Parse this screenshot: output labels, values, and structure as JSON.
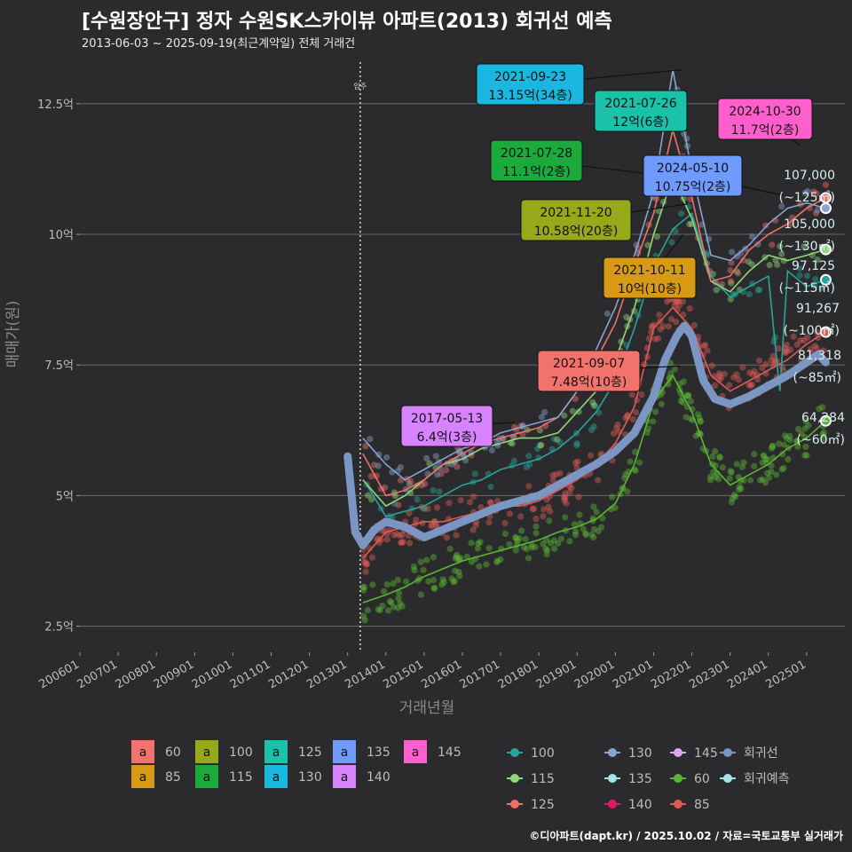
{
  "title": "[수원장안구] 정자 수원SK스카이뷰 아파트(2013) 회귀선 예측",
  "subtitle": "2013-06-03 ~ 2025-09-19(최근계약일) 전체 거래건",
  "caption": "©디아파트(dapt.kr) / 2025.10.02 / 자료=국토교통부 실거래가",
  "chart_data": {
    "type": "scatter",
    "xlabel": "거래년월",
    "ylabel": "매매가(원)",
    "xlim": [
      2006.0,
      2026.0
    ],
    "ylim": [
      2.0,
      13.5
    ],
    "y_ticks": [
      {
        "v": 2.5,
        "label": "2.5억"
      },
      {
        "v": 5,
        "label": "5억"
      },
      {
        "v": 7.5,
        "label": "7.5억"
      },
      {
        "v": 10,
        "label": "10억"
      },
      {
        "v": 12.5,
        "label": "12.5억"
      }
    ],
    "x_ticks": [
      {
        "v": 2006.0,
        "label": "200601"
      },
      {
        "v": 2007.0,
        "label": "200701"
      },
      {
        "v": 2008.0,
        "label": "200801"
      },
      {
        "v": 2009.0,
        "label": "200901"
      },
      {
        "v": 2010.0,
        "label": "201001"
      },
      {
        "v": 2011.0,
        "label": "201101"
      },
      {
        "v": 2012.0,
        "label": "201201"
      },
      {
        "v": 2013.0,
        "label": "201301"
      },
      {
        "v": 2014.0,
        "label": "201401"
      },
      {
        "v": 2015.0,
        "label": "201501"
      },
      {
        "v": 2016.0,
        "label": "201601"
      },
      {
        "v": 2017.0,
        "label": "201701"
      },
      {
        "v": 2018.0,
        "label": "201801"
      },
      {
        "v": 2019.0,
        "label": "201901"
      },
      {
        "v": 2020.0,
        "label": "202001"
      },
      {
        "v": 2021.0,
        "label": "202101"
      },
      {
        "v": 2022.0,
        "label": "202201"
      },
      {
        "v": 2023.0,
        "label": "202301"
      },
      {
        "v": 2024.0,
        "label": "202401"
      },
      {
        "v": 2025.0,
        "label": "202501"
      }
    ],
    "move_in": {
      "x": 2013.33,
      "label": "입주"
    },
    "regression": {
      "name": "회귀선",
      "color": "#7b96c4",
      "x": [
        2013.0,
        2013.2,
        2013.4,
        2013.7,
        2014.0,
        2014.5,
        2015.0,
        2015.5,
        2016.0,
        2016.5,
        2017.0,
        2017.5,
        2018.0,
        2018.5,
        2019.0,
        2019.5,
        2020.0,
        2020.5,
        2021.0,
        2021.3,
        2021.6,
        2021.8,
        2022.0,
        2022.3,
        2022.6,
        2023.0,
        2023.5,
        2024.0,
        2024.5,
        2025.0,
        2025.3,
        2025.5
      ],
      "y": [
        5.75,
        4.3,
        4.05,
        4.35,
        4.5,
        4.4,
        4.2,
        4.35,
        4.5,
        4.65,
        4.8,
        4.9,
        5.0,
        5.2,
        5.4,
        5.6,
        5.85,
        6.2,
        6.9,
        7.6,
        8.05,
        8.25,
        8.05,
        7.2,
        6.85,
        6.75,
        6.9,
        7.1,
        7.3,
        7.55,
        7.7,
        7.55
      ]
    },
    "series": [
      {
        "name": "60",
        "color": "#5bb534",
        "x": [
          2013.4,
          2014.0,
          2014.5,
          2015.0,
          2015.5,
          2016.0,
          2016.5,
          2017.0,
          2017.5,
          2018.0,
          2018.5,
          2019.0,
          2019.5,
          2020.0,
          2020.5,
          2021.0,
          2021.5,
          2022.0,
          2022.5,
          2023.0,
          2023.5,
          2024.0,
          2024.5,
          2025.0,
          2025.5
        ],
        "y": [
          2.95,
          3.1,
          3.25,
          3.45,
          3.6,
          3.75,
          3.85,
          3.95,
          4.05,
          4.15,
          4.3,
          4.4,
          4.55,
          4.85,
          5.6,
          6.8,
          7.3,
          6.6,
          5.6,
          5.2,
          5.4,
          5.6,
          5.9,
          6.1,
          6.43
        ]
      },
      {
        "name": "85",
        "color": "#e05a56",
        "x": [
          2013.4,
          2014.0,
          2014.5,
          2015.0,
          2015.5,
          2016.0,
          2016.5,
          2017.0,
          2017.5,
          2018.0,
          2018.5,
          2019.0,
          2019.5,
          2020.0,
          2020.5,
          2021.0,
          2021.5,
          2022.0,
          2022.5,
          2023.0,
          2023.5,
          2024.0,
          2024.5,
          2025.0,
          2025.5
        ],
        "y": [
          3.8,
          4.3,
          4.4,
          4.5,
          4.5,
          4.6,
          4.7,
          4.8,
          4.8,
          4.9,
          5.1,
          5.3,
          5.6,
          6.0,
          6.7,
          8.2,
          8.6,
          8.2,
          7.3,
          7.0,
          7.2,
          7.4,
          7.6,
          7.9,
          8.13
        ]
      },
      {
        "name": "100",
        "color": "#29a39a",
        "x": [
          2013.5,
          2014.0,
          2014.5,
          2015.0,
          2015.5,
          2016.0,
          2016.5,
          2017.0,
          2017.5,
          2018.0,
          2018.5,
          2019.0,
          2019.5,
          2020.0,
          2020.5,
          2021.0,
          2021.5,
          2022.0,
          2022.5,
          2023.0,
          2023.5,
          2024.0,
          2024.3,
          2024.5,
          2025.0,
          2025.5
        ],
        "y": [
          5.2,
          4.6,
          4.7,
          4.8,
          5.0,
          5.2,
          5.3,
          5.5,
          5.6,
          5.7,
          5.9,
          6.2,
          6.6,
          7.2,
          8.2,
          9.4,
          10.1,
          10.4,
          9.2,
          8.8,
          9.0,
          9.2,
          7.0,
          9.3,
          9.0,
          9.13
        ]
      },
      {
        "name": "115",
        "color": "#90d67a",
        "x": [
          2013.4,
          2014.0,
          2014.5,
          2015.0,
          2015.5,
          2016.0,
          2016.5,
          2017.0,
          2017.5,
          2018.0,
          2018.5,
          2019.0,
          2019.5,
          2020.0,
          2020.5,
          2021.0,
          2021.5,
          2022.0,
          2022.5,
          2023.0,
          2023.5,
          2024.0,
          2024.5,
          2025.0,
          2025.5
        ],
        "y": [
          5.3,
          4.8,
          5.0,
          5.3,
          5.6,
          5.7,
          5.9,
          6.0,
          6.1,
          6.1,
          6.2,
          6.6,
          7.0,
          7.6,
          8.6,
          10.0,
          11.1,
          10.3,
          9.1,
          8.9,
          9.3,
          9.6,
          9.5,
          9.6,
          9.71
        ]
      },
      {
        "name": "125",
        "color": "#f06f6b",
        "x": [
          2013.4,
          2014.0,
          2014.5,
          2015.0,
          2015.5,
          2016.0,
          2016.5,
          2017.0,
          2017.5,
          2018.0,
          2018.5,
          2019.0,
          2019.5,
          2020.0,
          2020.5,
          2021.0,
          2021.5,
          2022.0,
          2022.5,
          2023.0,
          2023.5,
          2024.0,
          2024.5,
          2025.0,
          2025.5
        ],
        "y": [
          5.8,
          5.0,
          5.1,
          5.3,
          5.6,
          5.8,
          6.0,
          6.1,
          6.2,
          6.3,
          6.5,
          7.0,
          7.6,
          8.3,
          9.4,
          10.4,
          12.0,
          10.7,
          9.1,
          9.2,
          9.7,
          10.0,
          10.2,
          10.5,
          10.7
        ]
      },
      {
        "name": "130",
        "color": "#8aa2d0",
        "x": [
          2013.4,
          2014.0,
          2014.5,
          2015.0,
          2015.5,
          2016.0,
          2016.5,
          2017.0,
          2017.5,
          2018.0,
          2018.5,
          2019.0,
          2019.5,
          2020.0,
          2020.5,
          2021.0,
          2021.5,
          2022.0,
          2022.5,
          2023.0,
          2023.5,
          2024.0,
          2024.5,
          2025.0,
          2025.5
        ],
        "y": [
          6.1,
          5.6,
          5.3,
          5.5,
          5.7,
          5.9,
          6.0,
          6.2,
          6.3,
          6.4,
          6.5,
          7.0,
          7.8,
          8.6,
          9.6,
          10.8,
          13.15,
          11.2,
          9.6,
          9.5,
          9.8,
          10.2,
          10.5,
          10.6,
          10.5
        ]
      }
    ],
    "annotations": [
      {
        "date": "2021-09-23",
        "price": "13.15억(34층)",
        "color": "#1ab8e0",
        "x": 2021.73,
        "y": 13.15
      },
      {
        "date": "2021-07-26",
        "price": "12억(6층)",
        "color": "#19c2a8",
        "x": 2021.57,
        "y": 12.0
      },
      {
        "date": "2024-10-30",
        "price": "11.7억(2층)",
        "color": "#ff5fcc",
        "x": 2024.83,
        "y": 11.7
      },
      {
        "date": "2021-07-28",
        "price": "11.1억(2층)",
        "color": "#1aab3c",
        "x": 2021.57,
        "y": 11.1
      },
      {
        "date": "2024-05-10",
        "price": "10.75억(2층)",
        "color": "#6f9bff",
        "x": 2024.36,
        "y": 10.75
      },
      {
        "date": "2021-11-20",
        "price": "10.58억(20층)",
        "color": "#97a81a",
        "x": 2021.88,
        "y": 10.58
      },
      {
        "date": "2021-10-11",
        "price": "10억(10층)",
        "color": "#d89a14",
        "x": 2021.78,
        "y": 10.0
      },
      {
        "date": "2021-09-07",
        "price": "7.48억(10층)",
        "color": "#f2736c",
        "x": 2021.69,
        "y": 7.48
      },
      {
        "date": "2017-05-13",
        "price": "6.4억(3층)",
        "color": "#d782ff",
        "x": 2017.37,
        "y": 6.4
      }
    ],
    "end_labels": [
      {
        "value": "107,000",
        "area": "(~125㎡)",
        "color": "#f06f6b",
        "y": 10.7
      },
      {
        "value": "105,000",
        "area": "(~130㎡)",
        "color": "#8aa2d0",
        "y": 10.5
      },
      {
        "value": "97,125",
        "area": "(~115㎡)",
        "color": "#90d67a",
        "y": 9.71
      },
      {
        "value": "91,267",
        "area": "(~100㎡)",
        "color": "#29a39a",
        "y": 9.13
      },
      {
        "value": "81,318",
        "area": "(~85㎡)",
        "color": "#e05a56",
        "y": 8.13
      },
      {
        "value": "64,284",
        "area": "(~60㎡)",
        "color": "#5bb534",
        "y": 6.43
      }
    ],
    "legend_fill": {
      "glyph": "a",
      "items": [
        {
          "label": "60",
          "color": "#f2736c"
        },
        {
          "label": "100",
          "color": "#97a81a"
        },
        {
          "label": "125",
          "color": "#19c2a8"
        },
        {
          "label": "135",
          "color": "#6f9bff"
        },
        {
          "label": "145",
          "color": "#ff5fcc"
        },
        {
          "label": "85",
          "color": "#d89a14"
        },
        {
          "label": "115",
          "color": "#1aab3c"
        },
        {
          "label": "130",
          "color": "#1ab8e0"
        },
        {
          "label": "140",
          "color": "#d782ff"
        }
      ]
    },
    "legend_line": {
      "items": [
        {
          "label": "100",
          "color": "#29a39a"
        },
        {
          "label": "130",
          "color": "#8aa2d0"
        },
        {
          "label": "145",
          "color": "#e0a6f0"
        },
        {
          "label": "회귀선",
          "color": "#7b96c4"
        },
        {
          "label": "115",
          "color": "#90d67a"
        },
        {
          "label": "135",
          "color": "#a5e3e8"
        },
        {
          "label": "60",
          "color": "#5bb534"
        },
        {
          "label": "회귀예측",
          "color": "#a5e3e8"
        },
        {
          "label": "125",
          "color": "#f06f6b"
        },
        {
          "label": "140",
          "color": "#e0196a"
        },
        {
          "label": "85",
          "color": "#e05a56"
        }
      ]
    }
  }
}
